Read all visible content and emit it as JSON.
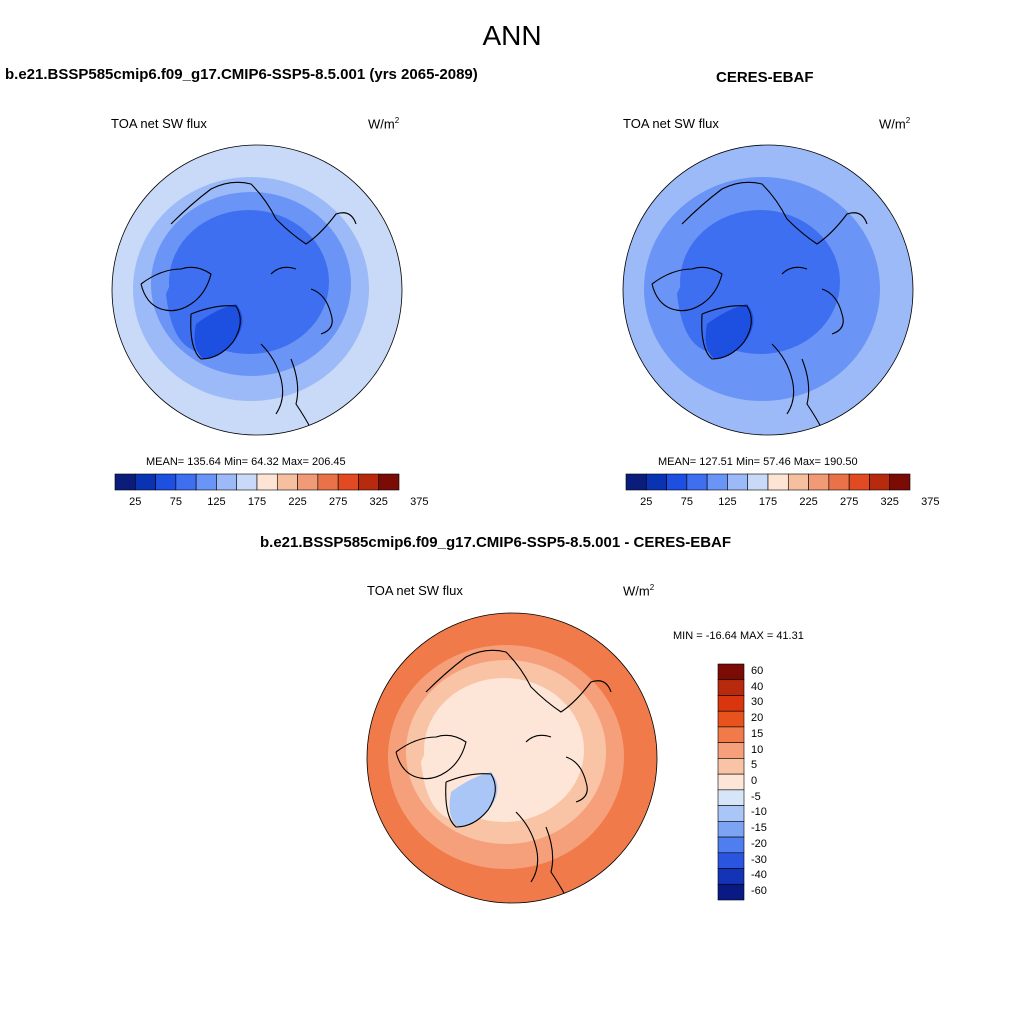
{
  "page_title": "ANN",
  "panels": [
    {
      "title": "b.e21.BSSP585cmip6.f09_g17.CMIP6-SSP5-8.5.001 (yrs 2065-2089)",
      "var_label": "TOA net SW flux",
      "units": "W/m",
      "units_sup": "2",
      "stats": "MEAN= 135.64  Min=  64.32  Max= 206.45",
      "tick_labels": [
        "25",
        "75",
        "125",
        "175",
        "225",
        "275",
        "325",
        "375"
      ]
    },
    {
      "title": "CERES-EBAF",
      "var_label": "TOA net SW flux",
      "units": "W/m",
      "units_sup": "2",
      "stats": "MEAN= 127.51  Min=  57.46  Max= 190.50",
      "tick_labels": [
        "25",
        "75",
        "125",
        "175",
        "225",
        "275",
        "325",
        "375"
      ]
    },
    {
      "title": "b.e21.BSSP585cmip6.f09_g17.CMIP6-SSP5-8.5.001 - CERES-EBAF",
      "var_label": "TOA net SW flux",
      "units": "W/m",
      "units_sup": "2",
      "stats": "MIN = -16.64 MAX =  41.31",
      "tick_labels": [
        "60",
        "40",
        "30",
        "20",
        "15",
        "10",
        "5",
        "0",
        "-5",
        "-10",
        "-15",
        "-20",
        "-30",
        "-40",
        "-60"
      ]
    }
  ],
  "colors": {
    "abs_scale": [
      "#0b1d7a",
      "#0a33b3",
      "#1d4fe0",
      "#3d6ff0",
      "#6a94f5",
      "#9bbaf7",
      "#c8daf8",
      "#fde4d4",
      "#f6bfa0",
      "#f09a76",
      "#ea7249",
      "#e24a22",
      "#b82a0d",
      "#7a0b05"
    ],
    "diff_scale": [
      "#7a0b05",
      "#b82a0d",
      "#d9360f",
      "#e8531d",
      "#f07a4a",
      "#f5a07a",
      "#f9c4a6",
      "#fde6d8",
      "#d6e6f8",
      "#aac6f6",
      "#7da4f3",
      "#4f7ef0",
      "#2a55e0",
      "#1434b8",
      "#0a1a85"
    ],
    "coastline": "#000000"
  }
}
